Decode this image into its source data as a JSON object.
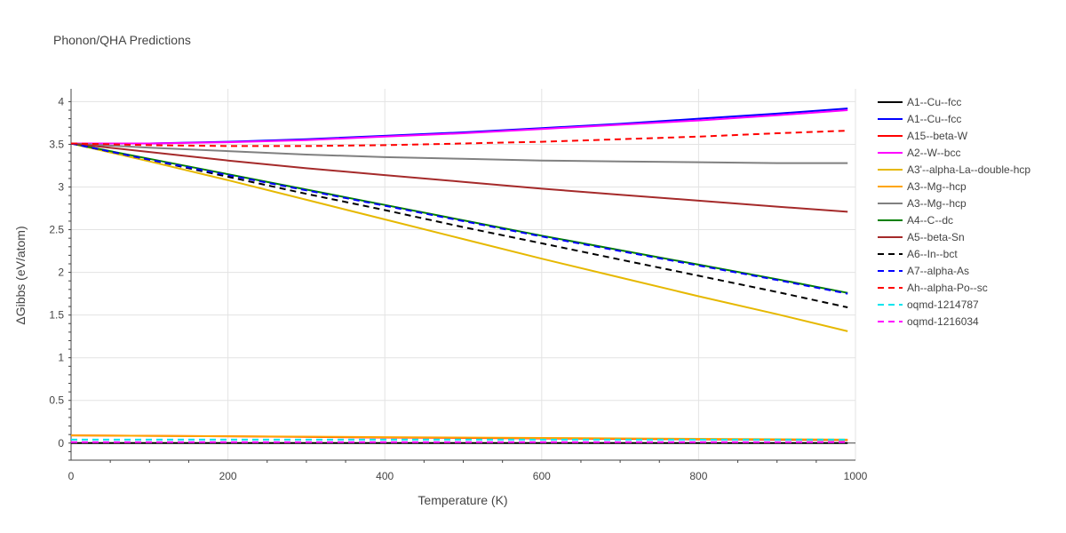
{
  "chart_data": {
    "type": "line",
    "title": "Phonon/QHA Predictions",
    "xlabel": "Temperature (K)",
    "ylabel": "ΔGibbs (eV/atom)",
    "xlim": [
      0,
      1000
    ],
    "ylim": [
      -0.2,
      4.15
    ],
    "x_ticks": [
      0,
      200,
      400,
      600,
      800,
      1000
    ],
    "y_ticks": [
      0,
      0.5,
      1,
      1.5,
      2,
      2.5,
      3,
      3.5,
      4
    ],
    "x_tick_labels": [
      "0",
      "200",
      "400",
      "600",
      "800",
      "1000"
    ],
    "y_tick_labels": [
      "0",
      "0.5",
      "1",
      "1.5",
      "2",
      "2.5",
      "3",
      "3.5",
      "4"
    ],
    "grid": true,
    "legend_position": "right",
    "series": [
      {
        "name": "A1--Cu--fcc",
        "color": "#000000",
        "dash": "solid",
        "x": [
          0,
          100,
          200,
          300,
          400,
          500,
          600,
          700,
          800,
          900,
          990
        ],
        "y": [
          0,
          0,
          0,
          0,
          0,
          0,
          0,
          0,
          0,
          0,
          0
        ]
      },
      {
        "name": "A1--Cu--fcc",
        "color": "#0000ff",
        "dash": "solid",
        "x": [
          0,
          100,
          200,
          300,
          400,
          500,
          600,
          700,
          800,
          900,
          990
        ],
        "y": [
          3.51,
          3.51,
          3.53,
          3.56,
          3.6,
          3.64,
          3.69,
          3.74,
          3.8,
          3.86,
          3.92
        ]
      },
      {
        "name": "A15--beta-W",
        "color": "#ff0000",
        "dash": "solid",
        "x": [
          0,
          200,
          400,
          600,
          800,
          990
        ],
        "y": [
          0.09,
          0.08,
          0.065,
          0.055,
          0.045,
          0.035
        ]
      },
      {
        "name": "A2--W--bcc",
        "color": "#ff00ff",
        "dash": "solid",
        "x": [
          0,
          100,
          200,
          300,
          400,
          500,
          600,
          700,
          800,
          900,
          990
        ],
        "y": [
          3.51,
          3.51,
          3.525,
          3.55,
          3.59,
          3.63,
          3.68,
          3.73,
          3.78,
          3.84,
          3.9
        ]
      },
      {
        "name": "A3'--alpha-La--double-hcp",
        "color": "#e6b800",
        "dash": "solid",
        "x": [
          0,
          100,
          200,
          300,
          400,
          500,
          600,
          700,
          800,
          900,
          990
        ],
        "y": [
          3.51,
          3.3,
          3.08,
          2.85,
          2.62,
          2.39,
          2.16,
          1.94,
          1.72,
          1.51,
          1.31
        ]
      },
      {
        "name": "A3--Mg--hcp",
        "color": "#ffa500",
        "dash": "solid",
        "x": [
          0,
          200,
          400,
          600,
          800,
          990
        ],
        "y": [
          0.09,
          0.08,
          0.07,
          0.06,
          0.05,
          0.04
        ]
      },
      {
        "name": "A3--Mg--hcp",
        "color": "#808080",
        "dash": "solid",
        "x": [
          0,
          100,
          200,
          300,
          400,
          500,
          600,
          700,
          800,
          900,
          990
        ],
        "y": [
          3.51,
          3.46,
          3.42,
          3.38,
          3.35,
          3.33,
          3.31,
          3.3,
          3.29,
          3.28,
          3.28
        ]
      },
      {
        "name": "A4--C--dc",
        "color": "#008000",
        "dash": "solid",
        "x": [
          0,
          100,
          200,
          300,
          400,
          500,
          600,
          700,
          800,
          900,
          990
        ],
        "y": [
          3.51,
          3.33,
          3.15,
          2.97,
          2.79,
          2.61,
          2.43,
          2.26,
          2.09,
          1.92,
          1.76
        ]
      },
      {
        "name": "A5--beta-Sn",
        "color": "#a52a2a",
        "dash": "solid",
        "x": [
          0,
          100,
          200,
          300,
          400,
          500,
          600,
          700,
          800,
          900,
          990
        ],
        "y": [
          3.51,
          3.41,
          3.31,
          3.22,
          3.14,
          3.06,
          2.98,
          2.91,
          2.84,
          2.77,
          2.71
        ]
      },
      {
        "name": "A6--In--bct",
        "color": "#000000",
        "dash": "dash",
        "x": [
          0,
          100,
          200,
          300,
          400,
          500,
          600,
          700,
          800,
          900,
          990
        ],
        "y": [
          3.51,
          3.32,
          3.12,
          2.92,
          2.73,
          2.53,
          2.34,
          2.15,
          1.96,
          1.77,
          1.59
        ]
      },
      {
        "name": "A7--alpha-As",
        "color": "#0000ff",
        "dash": "dash",
        "x": [
          0,
          100,
          200,
          300,
          400,
          500,
          600,
          700,
          800,
          900,
          990
        ],
        "y": [
          3.51,
          3.32,
          3.14,
          2.96,
          2.78,
          2.6,
          2.42,
          2.25,
          2.08,
          1.91,
          1.75
        ]
      },
      {
        "name": "Ah--alpha-Po--sc",
        "color": "#ff0000",
        "dash": "dash",
        "x": [
          0,
          100,
          200,
          300,
          400,
          500,
          600,
          700,
          800,
          900,
          990
        ],
        "y": [
          3.51,
          3.49,
          3.48,
          3.48,
          3.49,
          3.51,
          3.53,
          3.56,
          3.59,
          3.63,
          3.66
        ]
      },
      {
        "name": "oqmd-1214787",
        "color": "#00e5ee",
        "dash": "dash",
        "x": [
          0,
          200,
          400,
          600,
          800,
          990
        ],
        "y": [
          0.04,
          0.04,
          0.04,
          0.04,
          0.04,
          0.04
        ]
      },
      {
        "name": "oqmd-1216034",
        "color": "#ff00ff",
        "dash": "dash",
        "x": [
          0,
          200,
          400,
          600,
          800,
          990
        ],
        "y": [
          0.01,
          0.01,
          0.01,
          0.01,
          0.01,
          0.01
        ]
      }
    ]
  }
}
